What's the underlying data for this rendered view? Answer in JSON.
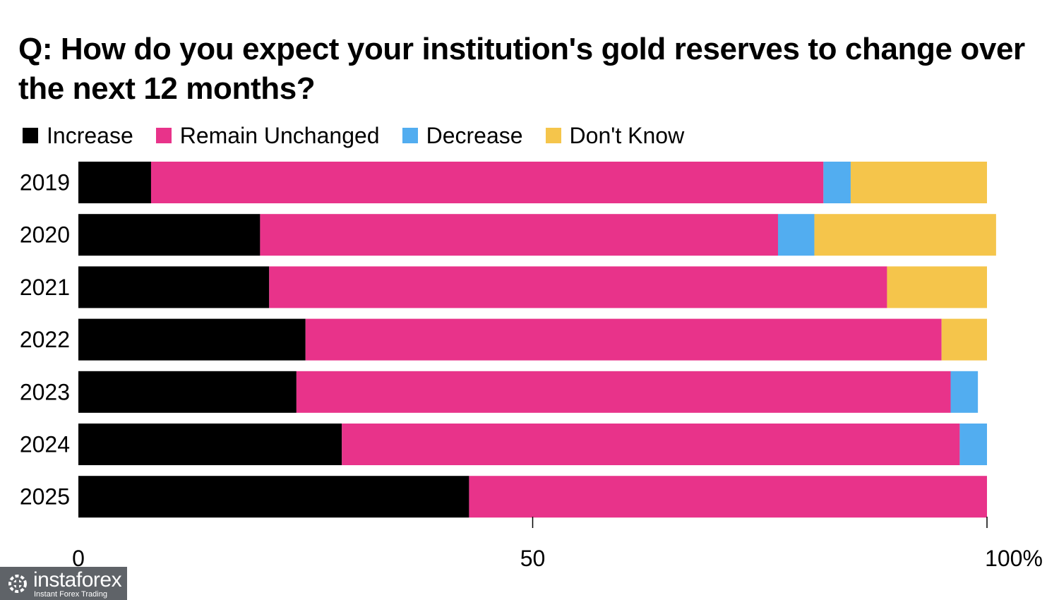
{
  "chart_data": {
    "type": "bar",
    "orientation": "horizontal",
    "stacked": true,
    "title": "Q: How do you expect your institution's gold reserves to change over the next 12 months?",
    "categories": [
      "2019",
      "2020",
      "2021",
      "2022",
      "2023",
      "2024",
      "2025"
    ],
    "series": [
      {
        "name": "Increase",
        "color": "#000000",
        "values": [
          8,
          20,
          21,
          25,
          24,
          29,
          43
        ]
      },
      {
        "name": "Remain Unchanged",
        "color": "#e8338a",
        "values": [
          74,
          57,
          68,
          70,
          72,
          68,
          57
        ]
      },
      {
        "name": "Decrease",
        "color": "#52adf0",
        "values": [
          3,
          4,
          0,
          0,
          3,
          3,
          0
        ]
      },
      {
        "name": "Don't Know",
        "color": "#f5c54b",
        "values": [
          15,
          20,
          11,
          5,
          0,
          0,
          0
        ]
      }
    ],
    "x_ticks": [
      0,
      50,
      100
    ],
    "x_tick_labels": [
      "0",
      "50",
      "100%"
    ],
    "xlim": [
      0,
      100
    ],
    "grid": false,
    "legend_position": "top-left"
  },
  "watermark": {
    "name": "instaforex",
    "tagline": "Instant Forex Trading",
    "icon": "gear-gift-icon"
  }
}
